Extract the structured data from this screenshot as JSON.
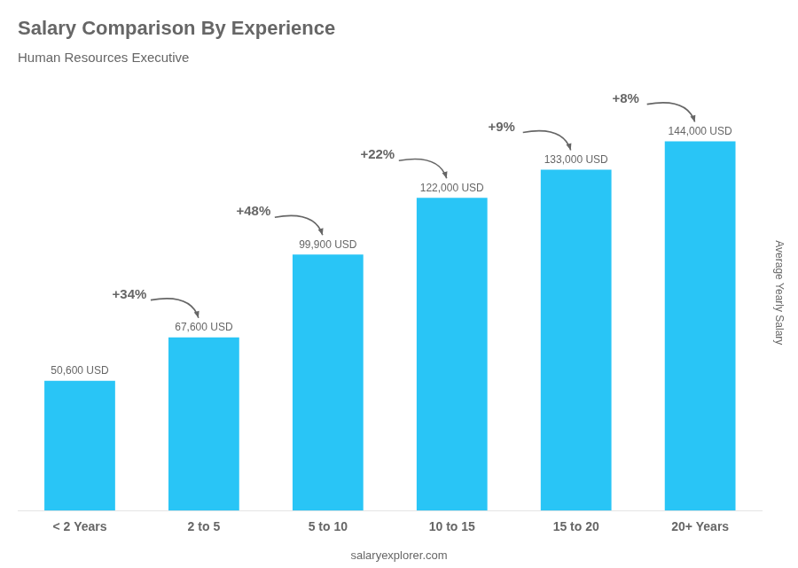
{
  "chart_data": {
    "type": "bar",
    "title": "Salary Comparison By Experience",
    "subtitle": "Human Resources Executive",
    "ylabel": "Average Yearly Salary",
    "footer": "salaryexplorer.com",
    "categories": [
      "< 2 Years",
      "2 to 5",
      "5 to 10",
      "10 to 15",
      "15 to 20",
      "20+ Years"
    ],
    "values": [
      50600,
      67600,
      99900,
      122000,
      133000,
      144000
    ],
    "value_labels": [
      "50,600 USD",
      "67,600 USD",
      "99,900 USD",
      "122,000 USD",
      "133,000 USD",
      "144,000 USD"
    ],
    "annotations": [
      "+34%",
      "+48%",
      "+22%",
      "+9%",
      "+8%"
    ],
    "color": "#29c5f6",
    "ylim": [
      0,
      170000
    ],
    "data_labels": true,
    "tick_labels": "x",
    "grid": false,
    "legend": false
  }
}
